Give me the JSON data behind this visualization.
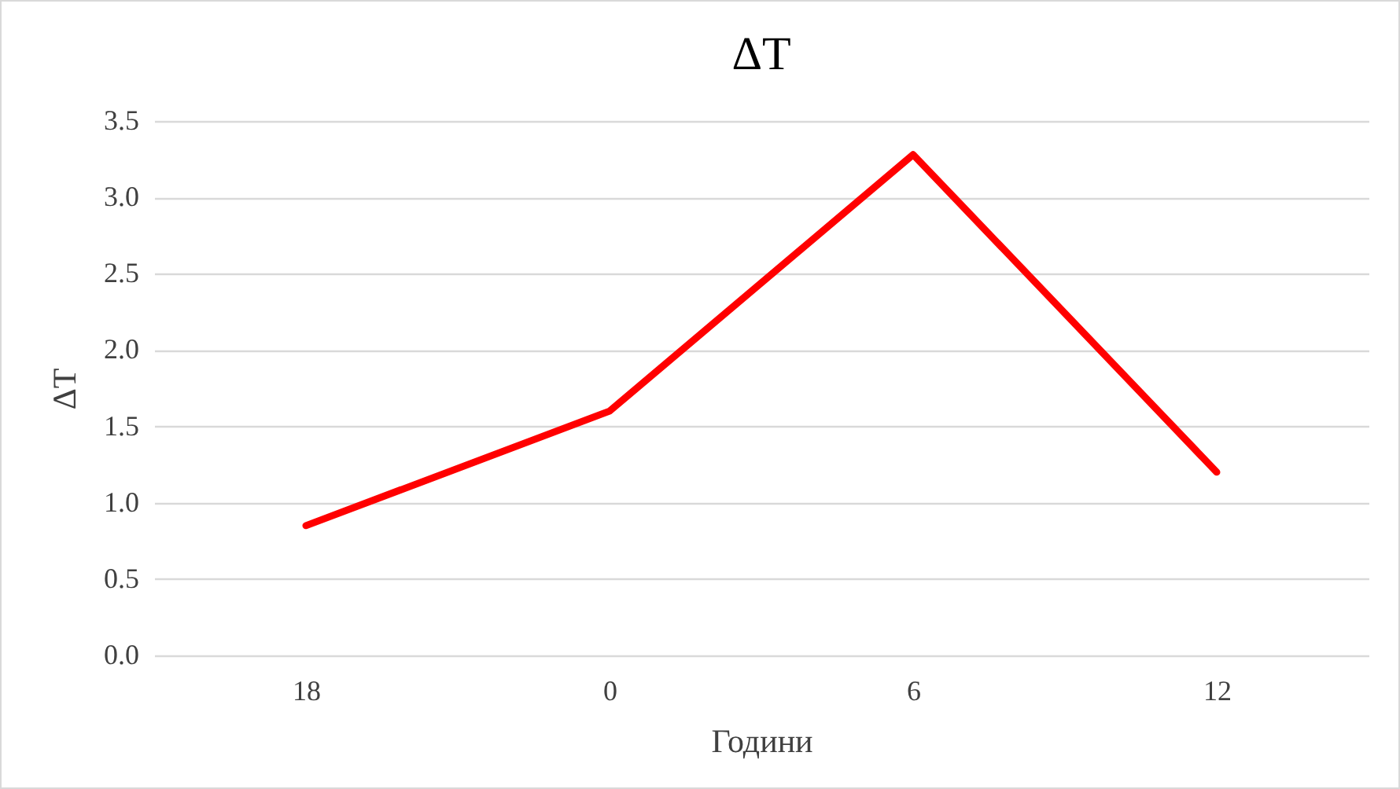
{
  "chart_data": {
    "type": "line",
    "title": "ΔT",
    "xlabel": "Години",
    "ylabel": "ΔT",
    "categories": [
      "18",
      "0",
      "6",
      "12"
    ],
    "values": [
      0.85,
      1.6,
      3.28,
      1.2
    ],
    "color": "#ff0000",
    "ylim": [
      0,
      3.5
    ],
    "yticks": [
      {
        "value": 0,
        "label": "0.0"
      },
      {
        "value": 0.5,
        "label": "0.5"
      },
      {
        "value": 1,
        "label": "1.0"
      },
      {
        "value": 1.5,
        "label": "1.5"
      },
      {
        "value": 2,
        "label": "2.0"
      },
      {
        "value": 2.5,
        "label": "2.5"
      },
      {
        "value": 3,
        "label": "3.0"
      },
      {
        "value": 3.5,
        "label": "3.5"
      }
    ],
    "grid": "y",
    "line_style": "solid"
  }
}
